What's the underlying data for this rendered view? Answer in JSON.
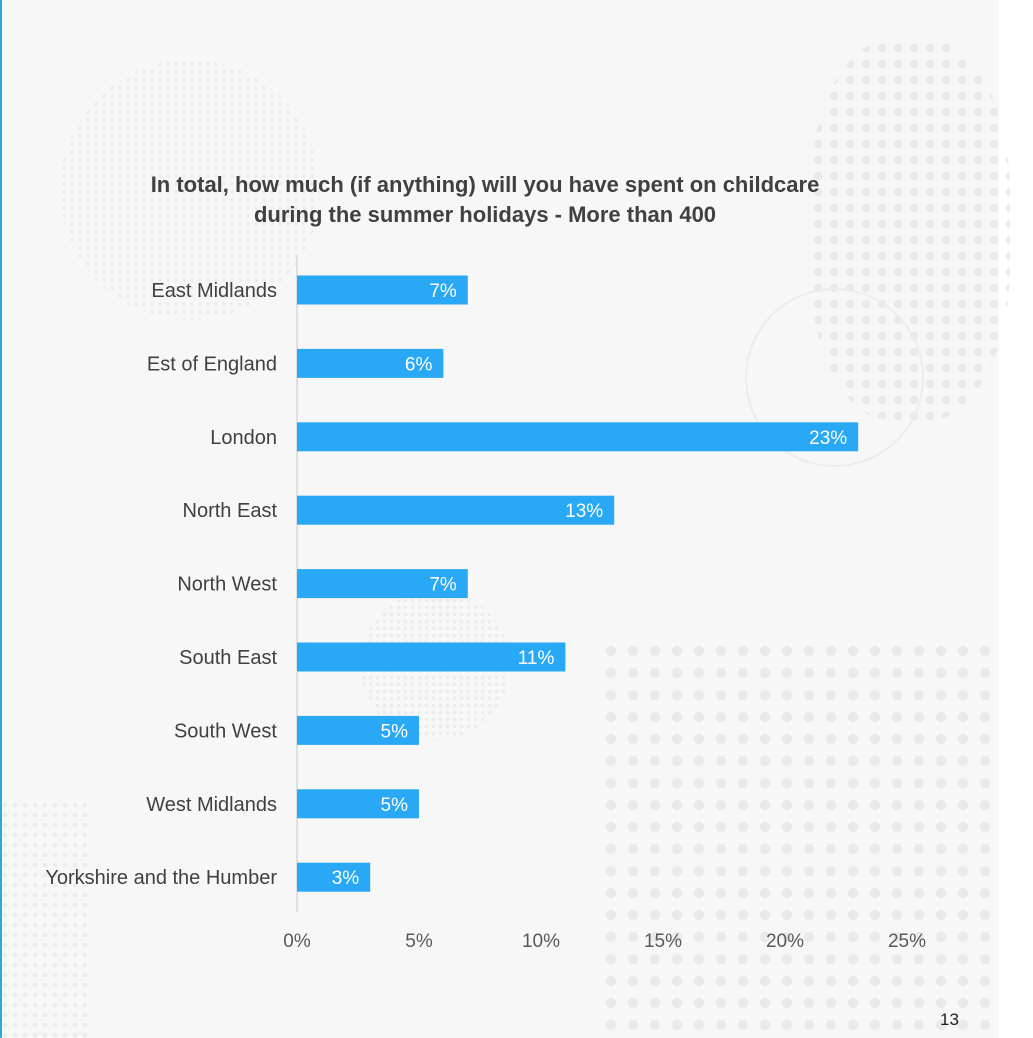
{
  "page_number": "13",
  "chart_data": {
    "type": "bar",
    "orientation": "horizontal",
    "title_line1": "In total, how much (if anything) will you have spent on childcare",
    "title_line2": "during the summer holidays - More than 400",
    "categories": [
      "East Midlands",
      "Est of England",
      "London",
      "North East",
      "North West",
      "South East",
      "South West",
      "West Midlands",
      "Yorkshire and the Humber"
    ],
    "values": [
      7,
      6,
      23,
      13,
      7,
      11,
      5,
      5,
      3
    ],
    "value_labels": [
      "7%",
      "6%",
      "23%",
      "13%",
      "7%",
      "11%",
      "5%",
      "5%",
      "3%"
    ],
    "x_ticks": [
      0,
      5,
      10,
      15,
      20,
      25
    ],
    "x_tick_labels": [
      "0%",
      "5%",
      "10%",
      "15%",
      "20%",
      "25%"
    ],
    "xlim": [
      0,
      25
    ],
    "grid": false,
    "legend": "none",
    "bar_color": "#29a8f5",
    "label_color": "#ffffff"
  }
}
